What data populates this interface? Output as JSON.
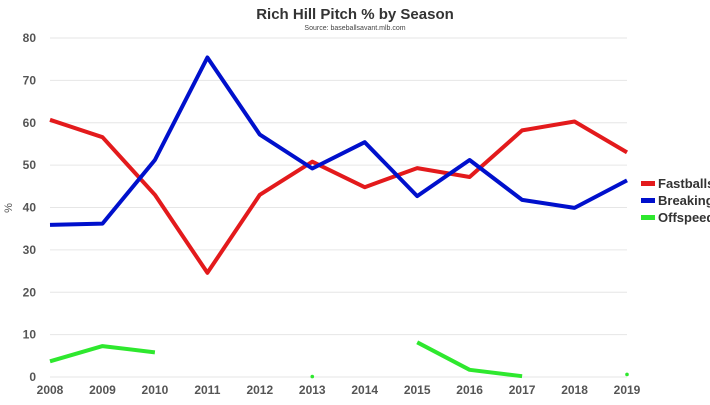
{
  "chart_data": {
    "type": "line",
    "title": "Rich Hill Pitch % by Season",
    "subtitle": "Source: baseballsavant.mlb.com",
    "ylabel": "%",
    "xlabel": "",
    "ylim": [
      0,
      80
    ],
    "yticks": [
      0,
      10,
      20,
      30,
      40,
      50,
      60,
      70,
      80
    ],
    "x": [
      "2008",
      "2009",
      "2010",
      "2011",
      "2012",
      "2013",
      "2014",
      "2015",
      "2016",
      "2017",
      "2018",
      "2019"
    ],
    "grid": true,
    "legend_position": "right",
    "series": [
      {
        "name": "Fastballs",
        "color": "#e31a1c",
        "values": [
          60.7,
          56.6,
          43.0,
          24.6,
          43.0,
          50.8,
          44.8,
          49.3,
          47.2,
          58.2,
          60.3,
          53.0
        ]
      },
      {
        "name": "Breaking",
        "color": "#0010cc",
        "values": [
          35.9,
          36.2,
          51.2,
          75.4,
          57.2,
          49.2,
          55.4,
          42.7,
          51.2,
          41.8,
          39.9,
          46.4
        ]
      },
      {
        "name": "Offspeed",
        "color": "#2ee82e",
        "values": [
          3.7,
          7.3,
          5.8,
          null,
          null,
          0.1,
          null,
          8.2,
          1.7,
          0.2,
          null,
          0.6
        ]
      }
    ]
  }
}
